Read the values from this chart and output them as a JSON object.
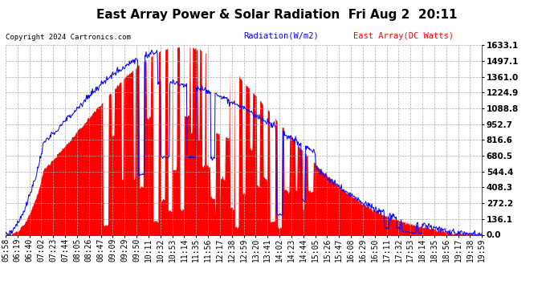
{
  "title": "East Array Power & Solar Radiation  Fri Aug 2  20:11",
  "copyright": "Copyright 2024 Cartronics.com",
  "legend_radiation": "Radiation(W/m2)",
  "legend_array": "East Array(DC Watts)",
  "ylabel_right_values": [
    1633.1,
    1497.1,
    1361.0,
    1224.9,
    1088.8,
    952.7,
    816.6,
    680.5,
    544.4,
    408.3,
    272.2,
    136.1,
    0.0
  ],
  "ymax": 1633.1,
  "ymin": 0.0,
  "background_color": "#ffffff",
  "plot_bg_color": "#ffffff",
  "grid_color": "#aaaaaa",
  "radiation_color": "#0000ff",
  "array_color": "#ff0000",
  "array_fill_color": "#ff0000",
  "title_fontsize": 11,
  "tick_fontsize": 7,
  "x_tick_labels": [
    "05:58",
    "06:19",
    "06:40",
    "07:02",
    "07:23",
    "07:44",
    "08:05",
    "08:26",
    "08:47",
    "09:09",
    "09:29",
    "09:50",
    "10:11",
    "10:32",
    "10:53",
    "11:14",
    "11:35",
    "11:56",
    "12:17",
    "12:38",
    "12:59",
    "13:20",
    "13:41",
    "14:02",
    "14:23",
    "14:44",
    "15:05",
    "15:26",
    "15:47",
    "16:08",
    "16:29",
    "16:50",
    "17:11",
    "17:32",
    "17:53",
    "18:14",
    "18:35",
    "18:56",
    "19:17",
    "19:38",
    "19:59"
  ]
}
